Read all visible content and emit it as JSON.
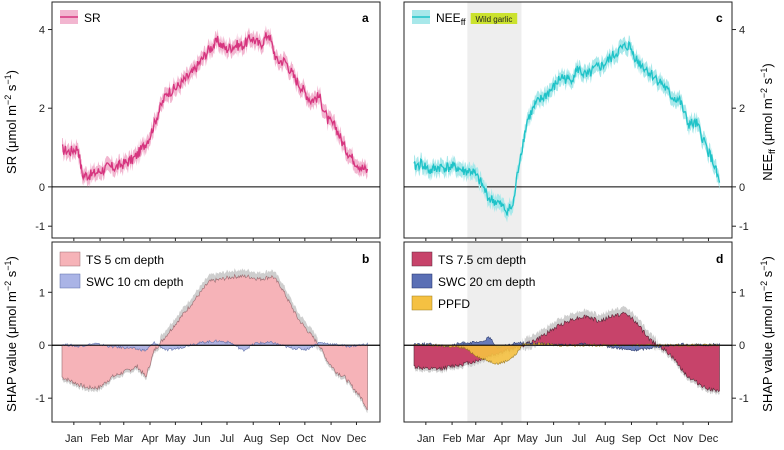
{
  "colors": {
    "sr": "#d6357f",
    "sr_band": "#f2b6d0",
    "nee": "#1fc3c8",
    "nee_band": "#a8e8ea",
    "ts5": "#f6b3b8",
    "swc10": "#aab4e6",
    "ts75": "#c7436a",
    "swc20": "#5a6fb5",
    "ppfd": "#f5c142",
    "garlic_box": "#cbe22e",
    "shade": "#eeeeee",
    "err_band": "#c9c9c9"
  },
  "months": [
    "Jan",
    "Feb",
    "Mar",
    "Apr",
    "May",
    "Jun",
    "Jul",
    "Aug",
    "Sep",
    "Oct",
    "Nov",
    "Dec"
  ],
  "left_axis": {
    "top_label": "SR (μmol m⁻² s⁻¹)",
    "bottom_label": "SHAP value (μmol m⁻² s⁻¹)"
  },
  "right_axis": {
    "top_label": "NEE_ff (μmol m⁻² s⁻¹)",
    "bottom_label": "SHAP value (μmol m⁻² s⁻¹)"
  },
  "chart_data": [
    {
      "panel": "a",
      "type": "line",
      "ylim": [
        -1.3,
        4.7
      ],
      "yticks": [
        -1,
        0,
        2,
        4
      ],
      "legend": [
        "SR"
      ],
      "series": [
        {
          "name": "SR",
          "x_doy": [
            1,
            10,
            20,
            25,
            35,
            45,
            55,
            65,
            75,
            85,
            95,
            105,
            115,
            125,
            135,
            145,
            155,
            165,
            175,
            185,
            195,
            205,
            215,
            225,
            235,
            245,
            255,
            265,
            275,
            285,
            295,
            305,
            315,
            325,
            335,
            345,
            355,
            362
          ],
          "values": [
            0.95,
            0.9,
            1.0,
            0.3,
            0.3,
            0.4,
            0.5,
            0.5,
            0.6,
            0.7,
            0.95,
            1.3,
            1.9,
            2.4,
            2.5,
            2.7,
            2.9,
            3.2,
            3.5,
            3.7,
            3.5,
            3.6,
            3.6,
            3.8,
            3.6,
            3.9,
            3.2,
            3.2,
            2.8,
            2.5,
            2.2,
            2.3,
            1.7,
            1.5,
            1.0,
            0.7,
            0.5,
            0.4
          ]
        }
      ]
    },
    {
      "panel": "c",
      "type": "line",
      "ylim": [
        -1.3,
        4.7
      ],
      "yticks": [
        -1,
        0,
        2,
        4
      ],
      "legend": [
        "NEE_ff"
      ],
      "annotation": "Wild garlic",
      "shaded_doy": [
        64,
        128
      ],
      "series": [
        {
          "name": "NEE_ff",
          "x_doy": [
            1,
            10,
            20,
            30,
            40,
            50,
            60,
            70,
            80,
            90,
            100,
            110,
            118,
            125,
            135,
            145,
            155,
            165,
            175,
            185,
            195,
            205,
            215,
            225,
            235,
            245,
            255,
            265,
            275,
            285,
            295,
            305,
            315,
            325,
            335,
            345,
            355,
            362
          ],
          "values": [
            0.5,
            0.6,
            0.4,
            0.5,
            0.5,
            0.5,
            0.4,
            0.4,
            0.1,
            -0.3,
            -0.4,
            -0.6,
            -0.5,
            0.6,
            1.7,
            2.1,
            2.3,
            2.5,
            2.8,
            2.7,
            3.0,
            2.8,
            3.0,
            3.1,
            3.3,
            3.5,
            3.6,
            3.2,
            3.0,
            2.8,
            2.6,
            2.3,
            2.2,
            1.6,
            1.6,
            1.1,
            0.6,
            0.1
          ]
        }
      ]
    },
    {
      "panel": "b",
      "type": "area",
      "ylim": [
        -1.45,
        1.95
      ],
      "yticks": [
        -1,
        0,
        1
      ],
      "legend": [
        "TS 5 cm depth",
        "SWC 10 cm depth"
      ],
      "series": [
        {
          "name": "TS 5 cm depth",
          "x_doy": [
            1,
            15,
            30,
            45,
            60,
            75,
            90,
            100,
            110,
            120,
            130,
            145,
            160,
            175,
            190,
            205,
            220,
            235,
            250,
            260,
            270,
            280,
            290,
            305,
            315,
            325,
            335,
            345,
            355,
            362
          ],
          "values": [
            -0.6,
            -0.7,
            -0.8,
            -0.8,
            -0.6,
            -0.5,
            -0.4,
            -0.6,
            -0.1,
            0.1,
            0.3,
            0.6,
            0.9,
            1.2,
            1.25,
            1.3,
            1.3,
            1.25,
            1.3,
            1.1,
            0.8,
            0.5,
            0.3,
            0.0,
            -0.3,
            -0.5,
            -0.6,
            -0.8,
            -1.0,
            -1.2
          ]
        },
        {
          "name": "SWC 10 cm depth",
          "x_doy": [
            1,
            20,
            40,
            60,
            80,
            100,
            110,
            125,
            140,
            155,
            170,
            185,
            200,
            215,
            230,
            250,
            270,
            290,
            305,
            320,
            340,
            362
          ],
          "values": [
            0.02,
            -0.02,
            0.03,
            -0.03,
            -0.05,
            -0.1,
            0.05,
            -0.1,
            -0.05,
            0.02,
            0.06,
            0.08,
            0.05,
            -0.1,
            0.04,
            0.05,
            -0.05,
            -0.08,
            0.05,
            0.02,
            -0.02,
            0.02
          ]
        }
      ]
    },
    {
      "panel": "d",
      "type": "area",
      "ylim": [
        -1.45,
        1.95
      ],
      "yticks": [
        -1,
        0,
        1
      ],
      "legend": [
        "TS 7.5 cm depth",
        "SWC 20 cm depth",
        "PPFD"
      ],
      "shaded_doy": [
        64,
        128
      ],
      "series": [
        {
          "name": "TS 7.5 cm depth",
          "x_doy": [
            1,
            15,
            30,
            45,
            60,
            75,
            90,
            100,
            110,
            120,
            130,
            145,
            160,
            175,
            190,
            205,
            220,
            235,
            250,
            260,
            270,
            280,
            290,
            305,
            315,
            325,
            335,
            345,
            355,
            362
          ],
          "values": [
            -0.4,
            -0.45,
            -0.45,
            -0.4,
            -0.35,
            -0.3,
            -0.2,
            -0.15,
            -0.1,
            -0.05,
            0.0,
            0.1,
            0.25,
            0.4,
            0.5,
            0.55,
            0.45,
            0.55,
            0.6,
            0.5,
            0.3,
            0.1,
            0.0,
            -0.2,
            -0.4,
            -0.6,
            -0.7,
            -0.8,
            -0.85,
            -0.9
          ]
        },
        {
          "name": "SWC 20 cm depth",
          "x_doy": [
            1,
            20,
            40,
            60,
            80,
            90,
            100,
            110,
            125,
            140,
            160,
            180,
            200,
            220,
            240,
            260,
            280,
            300,
            320,
            340,
            362
          ],
          "values": [
            0.03,
            0.02,
            -0.02,
            0.05,
            0.05,
            0.15,
            -0.05,
            0.0,
            0.05,
            0.03,
            0.02,
            0.0,
            0.02,
            0.0,
            -0.05,
            -0.1,
            -0.05,
            0.0,
            0.02,
            0.0,
            0.02
          ]
        },
        {
          "name": "PPFD",
          "x_doy": [
            1,
            20,
            40,
            60,
            70,
            80,
            90,
            100,
            110,
            120,
            130,
            150,
            170,
            200,
            230,
            260,
            290,
            320,
            362
          ],
          "values": [
            0.0,
            0.0,
            -0.02,
            -0.05,
            -0.15,
            -0.25,
            -0.3,
            -0.35,
            -0.3,
            -0.2,
            0.02,
            0.03,
            0.0,
            0.0,
            0.0,
            0.0,
            0.0,
            0.0,
            0.0
          ]
        }
      ]
    }
  ]
}
